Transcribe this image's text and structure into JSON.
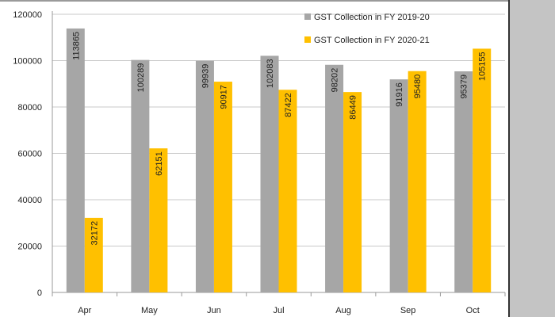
{
  "chart_data": {
    "type": "bar",
    "title": "",
    "xlabel": "",
    "ylabel": "",
    "categories": [
      "Apr",
      "May",
      "Jun",
      "Jul",
      "Aug",
      "Sep",
      "Oct"
    ],
    "series": [
      {
        "name": "GST Collection in FY 2019-20",
        "color": "#a6a6a6",
        "values": [
          113865,
          100289,
          99939,
          102083,
          98202,
          91916,
          95379
        ]
      },
      {
        "name": "GST Collection in FY 2020-21",
        "color": "#ffc000",
        "values": [
          32172,
          62151,
          90917,
          87422,
          86449,
          95480,
          105155
        ]
      }
    ],
    "ylim": [
      0,
      120000
    ],
    "yticks": [
      0,
      20000,
      40000,
      60000,
      80000,
      100000,
      120000
    ],
    "grid": true,
    "legend": "top-right",
    "data_labels": true
  }
}
